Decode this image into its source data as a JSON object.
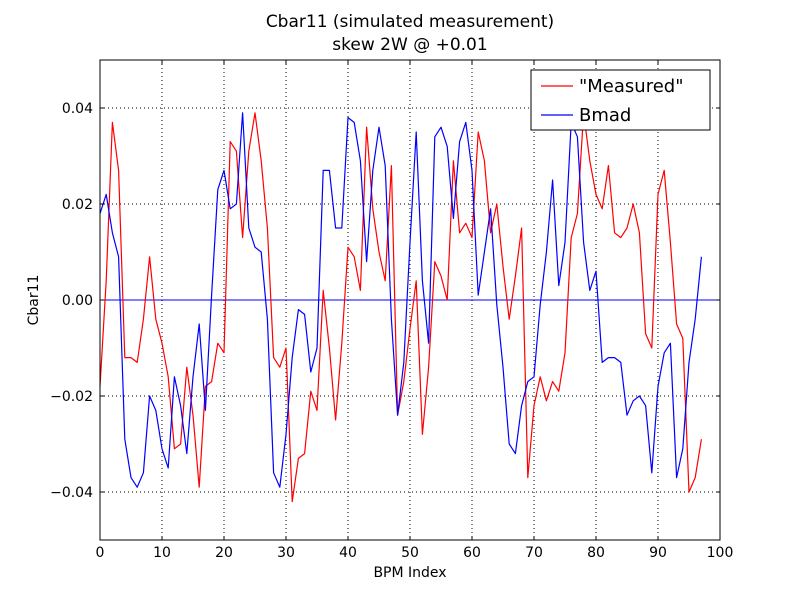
{
  "chart_data": {
    "type": "line",
    "title": "Cbar11 (simulated measurement)",
    "subtitle": "skew 2W @ +0.01",
    "xlabel": "BPM Index",
    "ylabel": "Cbar11",
    "xlim": [
      0,
      100
    ],
    "ylim": [
      -0.05,
      0.05
    ],
    "x_ticks": [
      0,
      10,
      20,
      30,
      40,
      50,
      60,
      70,
      80,
      90,
      100
    ],
    "y_ticks": [
      -0.04,
      -0.02,
      0.0,
      0.02,
      0.04
    ],
    "x_tick_labels": [
      "0",
      "10",
      "20",
      "30",
      "40",
      "50",
      "60",
      "70",
      "80",
      "90",
      "100"
    ],
    "y_tick_labels": [
      "−0.04",
      "−0.02",
      "0.00",
      "0.02",
      "0.04"
    ],
    "grid": true,
    "legend_position": "top-right",
    "zero_line": 0,
    "series": [
      {
        "name": "\"Measured\"",
        "color": "#ff0000",
        "x": [
          0,
          1,
          2,
          3,
          4,
          5,
          6,
          7,
          8,
          9,
          10,
          11,
          12,
          13,
          14,
          15,
          16,
          17,
          18,
          19,
          20,
          21,
          22,
          23,
          24,
          25,
          26,
          27,
          28,
          29,
          30,
          31,
          32,
          33,
          34,
          35,
          36,
          37,
          38,
          39,
          40,
          41,
          42,
          43,
          44,
          45,
          46,
          47,
          48,
          49,
          50,
          51,
          52,
          53,
          54,
          55,
          56,
          57,
          58,
          59,
          60,
          61,
          62,
          63,
          64,
          65,
          66,
          67,
          68,
          69,
          70,
          71,
          72,
          73,
          74,
          75,
          76,
          77,
          78,
          79,
          80,
          81,
          82,
          83,
          84,
          85,
          86,
          87,
          88,
          89,
          90,
          91,
          92,
          93,
          94,
          95,
          96,
          97
        ],
        "values": [
          -0.018,
          0.004,
          0.037,
          0.027,
          -0.012,
          -0.012,
          -0.013,
          -0.004,
          0.009,
          -0.004,
          -0.009,
          -0.016,
          -0.031,
          -0.03,
          -0.014,
          -0.024,
          -0.039,
          -0.018,
          -0.017,
          -0.009,
          -0.011,
          0.033,
          0.031,
          0.013,
          0.031,
          0.039,
          0.029,
          0.015,
          -0.012,
          -0.014,
          -0.01,
          -0.042,
          -0.033,
          -0.032,
          -0.019,
          -0.023,
          0.002,
          -0.01,
          -0.025,
          -0.009,
          0.011,
          0.009,
          0.002,
          0.036,
          0.019,
          0.01,
          0.004,
          0.028,
          -0.024,
          -0.017,
          -0.006,
          0.004,
          -0.028,
          -0.014,
          0.008,
          0.005,
          0.0,
          0.029,
          0.014,
          0.016,
          0.013,
          0.035,
          0.029,
          0.014,
          0.02,
          0.007,
          -0.004,
          0.005,
          0.015,
          -0.037,
          -0.022,
          -0.016,
          -0.021,
          -0.017,
          -0.019,
          -0.011,
          0.013,
          0.018,
          0.039,
          0.029,
          0.022,
          0.019,
          0.028,
          0.014,
          0.013,
          0.015,
          0.02,
          0.014,
          -0.007,
          -0.01,
          0.022,
          0.027,
          0.012,
          -0.005,
          -0.008,
          -0.04,
          -0.037,
          -0.029
        ]
      },
      {
        "name": "Bmad",
        "color": "#0000ff",
        "x": [
          0,
          1,
          2,
          3,
          4,
          5,
          6,
          7,
          8,
          9,
          10,
          11,
          12,
          13,
          14,
          15,
          16,
          17,
          18,
          19,
          20,
          21,
          22,
          23,
          24,
          25,
          26,
          27,
          28,
          29,
          30,
          31,
          32,
          33,
          34,
          35,
          36,
          37,
          38,
          39,
          40,
          41,
          42,
          43,
          44,
          45,
          46,
          47,
          48,
          49,
          50,
          51,
          52,
          53,
          54,
          55,
          56,
          57,
          58,
          59,
          60,
          61,
          62,
          63,
          64,
          65,
          66,
          67,
          68,
          69,
          70,
          71,
          72,
          73,
          74,
          75,
          76,
          77,
          78,
          79,
          80,
          81,
          82,
          83,
          84,
          85,
          86,
          87,
          88,
          89,
          90,
          91,
          92,
          93,
          94,
          95,
          96,
          97
        ],
        "values": [
          0.018,
          0.022,
          0.014,
          0.009,
          -0.029,
          -0.037,
          -0.039,
          -0.036,
          -0.02,
          -0.023,
          -0.031,
          -0.035,
          -0.016,
          -0.022,
          -0.032,
          -0.016,
          -0.005,
          -0.023,
          0.001,
          0.023,
          0.027,
          0.019,
          0.02,
          0.039,
          0.015,
          0.011,
          0.01,
          -0.004,
          -0.036,
          -0.039,
          -0.028,
          -0.012,
          -0.002,
          -0.003,
          -0.015,
          -0.01,
          0.027,
          0.027,
          0.015,
          0.015,
          0.038,
          0.037,
          0.029,
          0.008,
          0.027,
          0.036,
          0.028,
          -0.004,
          -0.024,
          -0.013,
          0.012,
          0.035,
          0.004,
          -0.009,
          0.034,
          0.036,
          0.032,
          0.017,
          0.033,
          0.037,
          0.027,
          0.001,
          0.01,
          0.019,
          -0.001,
          -0.014,
          -0.03,
          -0.032,
          -0.022,
          -0.017,
          -0.016,
          -0.001,
          0.01,
          0.025,
          0.003,
          0.012,
          0.037,
          0.034,
          0.012,
          0.002,
          0.006,
          -0.013,
          -0.012,
          -0.012,
          -0.013,
          -0.024,
          -0.021,
          -0.02,
          -0.022,
          -0.036,
          -0.018,
          -0.011,
          -0.009,
          -0.037,
          -0.031,
          -0.013,
          -0.004,
          0.009
        ]
      }
    ]
  }
}
